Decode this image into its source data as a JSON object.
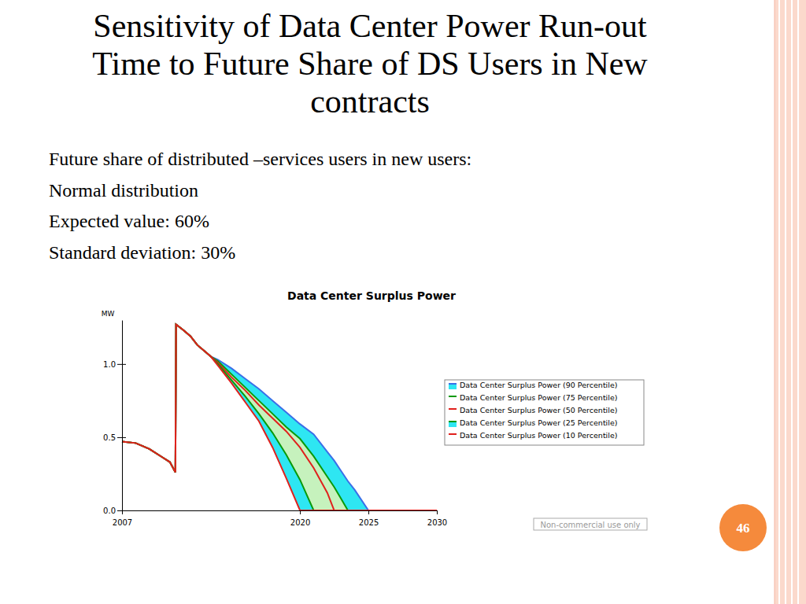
{
  "slide": {
    "title_lines": [
      "Sensitivity of Data Center Power Run-out",
      "Time to Future Share of DS Users in New",
      "contracts"
    ],
    "text_lines": [
      "Future share of distributed –services users in new users:",
      "Normal distribution",
      "Expected value: 60%",
      "Standard deviation: 30%"
    ],
    "watermark": "Non-commercial use only",
    "page_number": 46
  },
  "chart_data": {
    "type": "line",
    "title": "Data Center Surplus Power",
    "y_label": "MW",
    "x": [
      2007,
      2008,
      2009,
      2010,
      2010.5,
      2010.9,
      2010.95,
      2011.5,
      2012,
      2012.5,
      2013,
      2013.5,
      2014,
      2015,
      2016,
      2017,
      2018,
      2019,
      2020,
      2021,
      2022,
      2022.5,
      2023,
      2023.5,
      2024,
      2025,
      2030
    ],
    "xlim": [
      2007,
      2030
    ],
    "xticks": [
      2007,
      2020,
      2025,
      2030
    ],
    "ylim": [
      0,
      1.3
    ],
    "yticks": [
      {
        "value": 0,
        "label": "0.0"
      },
      {
        "value": 0.5,
        "label": "0.5"
      },
      {
        "value": 1,
        "label": "1.0"
      }
    ],
    "grid": false,
    "legend": "right",
    "series": [
      {
        "name": "Data Center Surplus Power (90 Percentile)",
        "color": "#3a6fe8",
        "values": [
          0.47,
          0.46,
          0.42,
          0.36,
          0.33,
          0.26,
          1.27,
          1.23,
          1.19,
          1.13,
          1.09,
          1.05,
          1.03,
          0.97,
          0.9,
          0.83,
          0.75,
          0.67,
          0.59,
          0.52,
          0.4,
          0.34,
          0.27,
          0.2,
          0.14,
          0,
          0
        ]
      },
      {
        "name": "Data Center Surplus Power (75 Percentile)",
        "color": "#0a9a0a",
        "values": [
          0.47,
          0.46,
          0.42,
          0.36,
          0.33,
          0.26,
          1.27,
          1.23,
          1.19,
          1.13,
          1.09,
          1.05,
          1.02,
          0.93,
          0.84,
          0.75,
          0.66,
          0.57,
          0.49,
          0.37,
          0.23,
          0.16,
          0.08,
          0,
          0,
          0,
          0
        ]
      },
      {
        "name": "Data Center Surplus Power (50 Percentile)",
        "color": "#e0201c",
        "values": [
          0.47,
          0.46,
          0.42,
          0.36,
          0.33,
          0.26,
          1.27,
          1.23,
          1.19,
          1.13,
          1.09,
          1.05,
          1.01,
          0.91,
          0.82,
          0.72,
          0.63,
          0.54,
          0.43,
          0.29,
          0.12,
          0,
          0,
          0,
          0,
          0,
          0
        ]
      },
      {
        "name": "Data Center Surplus Power (25 Percentile)",
        "color": "#0a9a0a",
        "values": [
          0.47,
          0.46,
          0.42,
          0.36,
          0.33,
          0.26,
          1.27,
          1.23,
          1.19,
          1.13,
          1.09,
          1.05,
          1.0,
          0.89,
          0.78,
          0.66,
          0.53,
          0.38,
          0.21,
          0,
          0,
          0,
          0,
          0,
          0,
          0,
          0
        ]
      },
      {
        "name": "Data Center Surplus Power (10 Percentile)",
        "color": "#e0201c",
        "values": [
          0.47,
          0.46,
          0.42,
          0.36,
          0.33,
          0.26,
          1.27,
          1.23,
          1.19,
          1.13,
          1.09,
          1.05,
          0.99,
          0.87,
          0.74,
          0.61,
          0.43,
          0.22,
          0,
          0,
          0,
          0,
          0,
          0,
          0,
          0,
          0
        ]
      }
    ]
  }
}
